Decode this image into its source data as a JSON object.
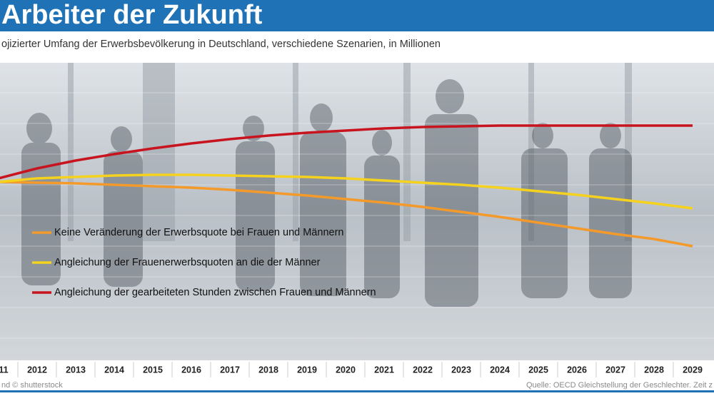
{
  "chart_data": {
    "type": "line",
    "title": "Arbeiter der Zukunft",
    "subtitle": "ojizierter Umfang der Erwerbsbevölkerung in Deutschland, verschiedene Szenarien, in Millionen",
    "credit": "nd © shutterstock",
    "source": "Quelle: OECD  Gleichstellung der Geschlechter. Zeit z",
    "categories": [
      "11",
      "2012",
      "2013",
      "2014",
      "2015",
      "2016",
      "2017",
      "2018",
      "2019",
      "2020",
      "2021",
      "2022",
      "2023",
      "2024",
      "2025",
      "2026",
      "2027",
      "2028",
      "2029"
    ],
    "ylim": [
      38.8,
      47.2
    ],
    "series": [
      {
        "name": "Keine Veränderung der Erwerbsquote bei Frauen und Männern",
        "color": "#f39a2b",
        "values": [
          43.9,
          43.88,
          43.86,
          43.82,
          43.78,
          43.74,
          43.68,
          43.6,
          43.52,
          43.42,
          43.32,
          43.2,
          43.06,
          42.92,
          42.76,
          42.6,
          42.44,
          42.3,
          42.1
        ]
      },
      {
        "name": "Angleichung der Frauenerwerbsquoten an die der Männer",
        "color": "#f5d21e",
        "values": [
          43.9,
          44.0,
          44.04,
          44.08,
          44.1,
          44.1,
          44.08,
          44.06,
          44.04,
          44.0,
          43.94,
          43.88,
          43.82,
          43.74,
          43.64,
          43.54,
          43.42,
          43.3,
          43.16
        ]
      },
      {
        "name": "Angleichung der gearbeiteten Stunden zwischen Frauen und Männern",
        "color": "#c8141e",
        "values": [
          44.0,
          44.28,
          44.5,
          44.68,
          44.84,
          44.98,
          45.1,
          45.2,
          45.28,
          45.34,
          45.4,
          45.44,
          45.46,
          45.48,
          45.48,
          45.48,
          45.48,
          45.48,
          45.48
        ]
      }
    ]
  }
}
